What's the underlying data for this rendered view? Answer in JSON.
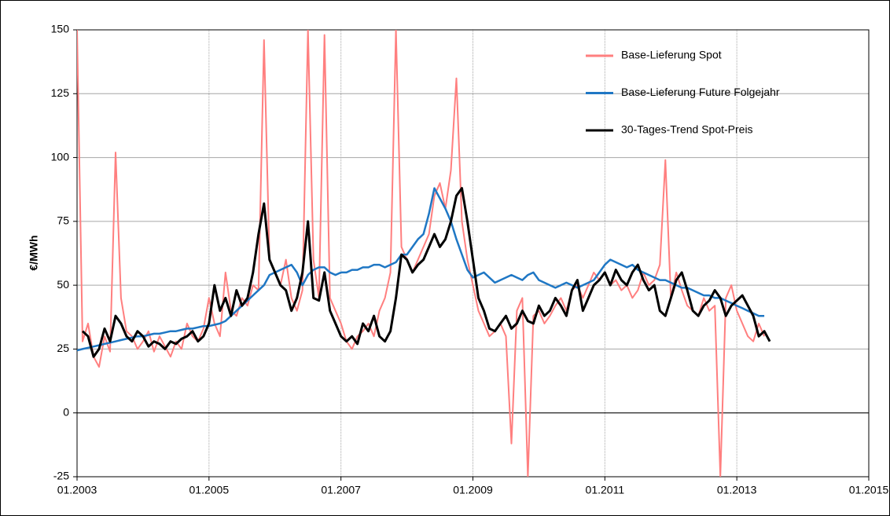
{
  "chart_data": {
    "type": "line",
    "y_label": "€/MWh",
    "x": [
      "2003-01",
      "2003-02",
      "2003-03",
      "2003-04",
      "2003-05",
      "2003-06",
      "2003-07",
      "2003-08",
      "2003-09",
      "2003-10",
      "2003-11",
      "2003-12",
      "2004-01",
      "2004-02",
      "2004-03",
      "2004-04",
      "2004-05",
      "2004-06",
      "2004-07",
      "2004-08",
      "2004-09",
      "2004-10",
      "2004-11",
      "2004-12",
      "2005-01",
      "2005-02",
      "2005-03",
      "2005-04",
      "2005-05",
      "2005-06",
      "2005-07",
      "2005-08",
      "2005-09",
      "2005-10",
      "2005-11",
      "2005-12",
      "2006-01",
      "2006-02",
      "2006-03",
      "2006-04",
      "2006-05",
      "2006-06",
      "2006-07",
      "2006-08",
      "2006-09",
      "2006-10",
      "2006-11",
      "2006-12",
      "2007-01",
      "2007-02",
      "2007-03",
      "2007-04",
      "2007-05",
      "2007-06",
      "2007-07",
      "2007-08",
      "2007-09",
      "2007-10",
      "2007-11",
      "2007-12",
      "2008-01",
      "2008-02",
      "2008-03",
      "2008-04",
      "2008-05",
      "2008-06",
      "2008-07",
      "2008-08",
      "2008-09",
      "2008-10",
      "2008-11",
      "2008-12",
      "2009-01",
      "2009-02",
      "2009-03",
      "2009-04",
      "2009-05",
      "2009-06",
      "2009-07",
      "2009-08",
      "2009-09",
      "2009-10",
      "2009-11",
      "2009-12",
      "2010-01",
      "2010-02",
      "2010-03",
      "2010-04",
      "2010-05",
      "2010-06",
      "2010-07",
      "2010-08",
      "2010-09",
      "2010-10",
      "2010-11",
      "2010-12",
      "2011-01",
      "2011-02",
      "2011-03",
      "2011-04",
      "2011-05",
      "2011-06",
      "2011-07",
      "2011-08",
      "2011-09",
      "2011-10",
      "2011-11",
      "2011-12",
      "2012-01",
      "2012-02",
      "2012-03",
      "2012-04",
      "2012-05",
      "2012-06",
      "2012-07",
      "2012-08",
      "2012-09",
      "2012-10",
      "2012-11",
      "2012-12",
      "2013-01",
      "2013-02",
      "2013-03",
      "2013-04",
      "2013-05",
      "2013-06",
      "2013-07"
    ],
    "series": [
      {
        "name": "Base-Lieferung Spot",
        "color": "#ff7f7f",
        "values": [
          150,
          28,
          35,
          22,
          18,
          30,
          24,
          102,
          45,
          32,
          30,
          25,
          28,
          32,
          24,
          30,
          26,
          22,
          28,
          25,
          35,
          30,
          28,
          33,
          45,
          35,
          30,
          55,
          40,
          38,
          45,
          42,
          50,
          48,
          146,
          60,
          55,
          50,
          60,
          45,
          40,
          48,
          150,
          60,
          45,
          148,
          45,
          40,
          35,
          28,
          25,
          30,
          32,
          35,
          30,
          40,
          45,
          55,
          150,
          65,
          60,
          55,
          60,
          65,
          70,
          85,
          90,
          80,
          95,
          131,
          75,
          60,
          50,
          40,
          35,
          30,
          32,
          35,
          30,
          -12,
          40,
          45,
          -25,
          38,
          40,
          35,
          38,
          42,
          45,
          40,
          48,
          50,
          45,
          50,
          55,
          52,
          55,
          50,
          52,
          48,
          50,
          45,
          48,
          55,
          50,
          52,
          58,
          99,
          45,
          55,
          48,
          42,
          40,
          38,
          45,
          40,
          42,
          -25,
          45,
          50,
          40,
          35,
          30,
          28,
          35,
          30,
          null
        ]
      },
      {
        "name": "Base-Lieferung Future Folgejahr",
        "color": "#1f77c4",
        "values": [
          24.5,
          25,
          25.5,
          26,
          26.5,
          27,
          27.5,
          28,
          28.5,
          29,
          29.5,
          30,
          30,
          30.5,
          31,
          31,
          31.5,
          32,
          32,
          32.5,
          33,
          33,
          33.5,
          34,
          34,
          34.5,
          35,
          36,
          38,
          40,
          42,
          44,
          46,
          48,
          50,
          54,
          55,
          56,
          57,
          58,
          55,
          50,
          54,
          56,
          57,
          57,
          55,
          54,
          55,
          55,
          56,
          56,
          57,
          57,
          58,
          58,
          57,
          58,
          59,
          62,
          62,
          65,
          68,
          70,
          78,
          88,
          84,
          80,
          75,
          68,
          62,
          56,
          53,
          54,
          55,
          53,
          51,
          52,
          53,
          54,
          53,
          52,
          54,
          55,
          52,
          51,
          50,
          49,
          50,
          51,
          50,
          49,
          50,
          51,
          52,
          55,
          58,
          60,
          59,
          58,
          57,
          58,
          56,
          55,
          54,
          53,
          52,
          52,
          51,
          50,
          49,
          49,
          48,
          47,
          46,
          46,
          45,
          45,
          44,
          43,
          42,
          41,
          40,
          39,
          38,
          38,
          null
        ]
      },
      {
        "name": "30-Tages-Trend Spot-Preis",
        "color": "#000000",
        "values": [
          null,
          32,
          30,
          22,
          25,
          33,
          28,
          38,
          35,
          30,
          28,
          32,
          30,
          26,
          28,
          27,
          25,
          28,
          27,
          29,
          30,
          32,
          28,
          30,
          35,
          50,
          40,
          45,
          38,
          48,
          42,
          45,
          55,
          70,
          82,
          60,
          55,
          50,
          48,
          40,
          45,
          55,
          75,
          45,
          44,
          55,
          40,
          35,
          30,
          28,
          30,
          27,
          35,
          32,
          38,
          30,
          28,
          32,
          45,
          62,
          60,
          55,
          58,
          60,
          65,
          70,
          65,
          68,
          75,
          85,
          88,
          75,
          60,
          45,
          40,
          33,
          32,
          35,
          38,
          33,
          35,
          40,
          36,
          35,
          42,
          38,
          40,
          45,
          42,
          38,
          48,
          52,
          40,
          45,
          50,
          52,
          55,
          50,
          56,
          52,
          50,
          55,
          58,
          52,
          48,
          50,
          40,
          38,
          45,
          52,
          55,
          48,
          40,
          38,
          42,
          44,
          48,
          45,
          38,
          42,
          44,
          46,
          42,
          38,
          30,
          32,
          28
        ]
      }
    ],
    "xlim": [
      "2003-01",
      "2015-01"
    ],
    "xticks": [
      {
        "value": "2003-01",
        "label": "01.2003"
      },
      {
        "value": "2005-01",
        "label": "01.2005"
      },
      {
        "value": "2007-01",
        "label": "01.2007"
      },
      {
        "value": "2009-01",
        "label": "01.2009"
      },
      {
        "value": "2011-01",
        "label": "01.2011"
      },
      {
        "value": "2013-01",
        "label": "01.2013"
      },
      {
        "value": "2015-01",
        "label": "01.2015"
      }
    ],
    "ylim": [
      -25,
      150
    ],
    "yticks": [
      -25,
      0,
      25,
      50,
      75,
      100,
      125,
      150
    ],
    "grid": true,
    "legend": "top-right"
  }
}
